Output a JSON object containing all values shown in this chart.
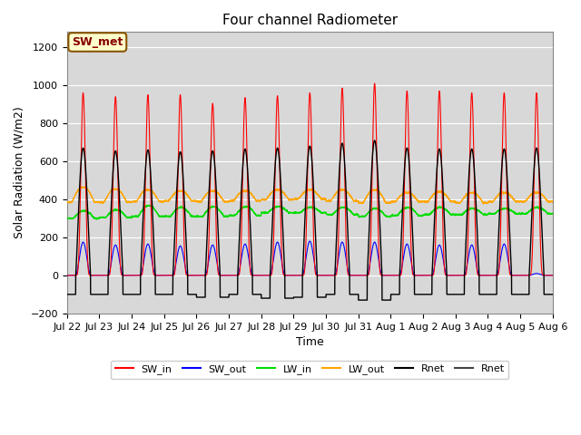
{
  "title": "Four channel Radiometer",
  "xlabel": "Time",
  "ylabel": "Solar Radiation (W/m2)",
  "ylim": [
    -200,
    1280
  ],
  "yticks": [
    -200,
    0,
    200,
    400,
    600,
    800,
    1000,
    1200
  ],
  "x_labels": [
    "Jul 22",
    "Jul 23",
    "Jul 24",
    "Jul 25",
    "Jul 26",
    "Jul 27",
    "Jul 28",
    "Jul 29",
    "Jul 30",
    "Jul 31",
    "Aug 1",
    "Aug 2",
    "Aug 3",
    "Aug 4",
    "Aug 5",
    "Aug 6"
  ],
  "n_days": 15,
  "legend": [
    {
      "label": "SW_in",
      "color": "#ff0000"
    },
    {
      "label": "SW_out",
      "color": "#0000ff"
    },
    {
      "label": "LW_in",
      "color": "#00dd00"
    },
    {
      "label": "LW_out",
      "color": "#ffa500"
    },
    {
      "label": "Rnet",
      "color": "#000000"
    },
    {
      "label": "Rnet",
      "color": "#444444"
    }
  ],
  "annotation_text": "SW_met",
  "annotation_bg": "#ffffcc",
  "annotation_border": "#885500",
  "plot_bg": "#d8d8d8",
  "fig_bg": "#ffffff",
  "grid_color": "#ffffff",
  "sw_in_peaks": [
    960,
    940,
    950,
    950,
    905,
    935,
    945,
    960,
    985,
    1010,
    970,
    970,
    960,
    960,
    960
  ],
  "sw_out_peaks": [
    175,
    160,
    165,
    155,
    160,
    165,
    175,
    180,
    175,
    175,
    165,
    160,
    160,
    165,
    10
  ],
  "lw_in_base": [
    300,
    305,
    310,
    310,
    310,
    315,
    330,
    330,
    320,
    310,
    315,
    320,
    320,
    325,
    325
  ],
  "lw_in_peaks": [
    340,
    345,
    368,
    358,
    362,
    362,
    362,
    358,
    358,
    352,
    358,
    358,
    352,
    352,
    358
  ],
  "lw_out_base": [
    385,
    385,
    388,
    392,
    388,
    392,
    398,
    402,
    392,
    382,
    388,
    388,
    382,
    388,
    388
  ],
  "lw_out_peaks": [
    468,
    458,
    453,
    448,
    448,
    448,
    453,
    453,
    453,
    453,
    438,
    443,
    438,
    438,
    438
  ],
  "rnet_peaks": [
    670,
    655,
    660,
    650,
    655,
    665,
    670,
    680,
    695,
    710,
    670,
    665,
    665,
    665,
    670
  ],
  "rnet_night": [
    -100,
    -100,
    -100,
    -100,
    -115,
    -100,
    -120,
    -115,
    -100,
    -130,
    -100,
    -100,
    -100,
    -100,
    -100
  ]
}
